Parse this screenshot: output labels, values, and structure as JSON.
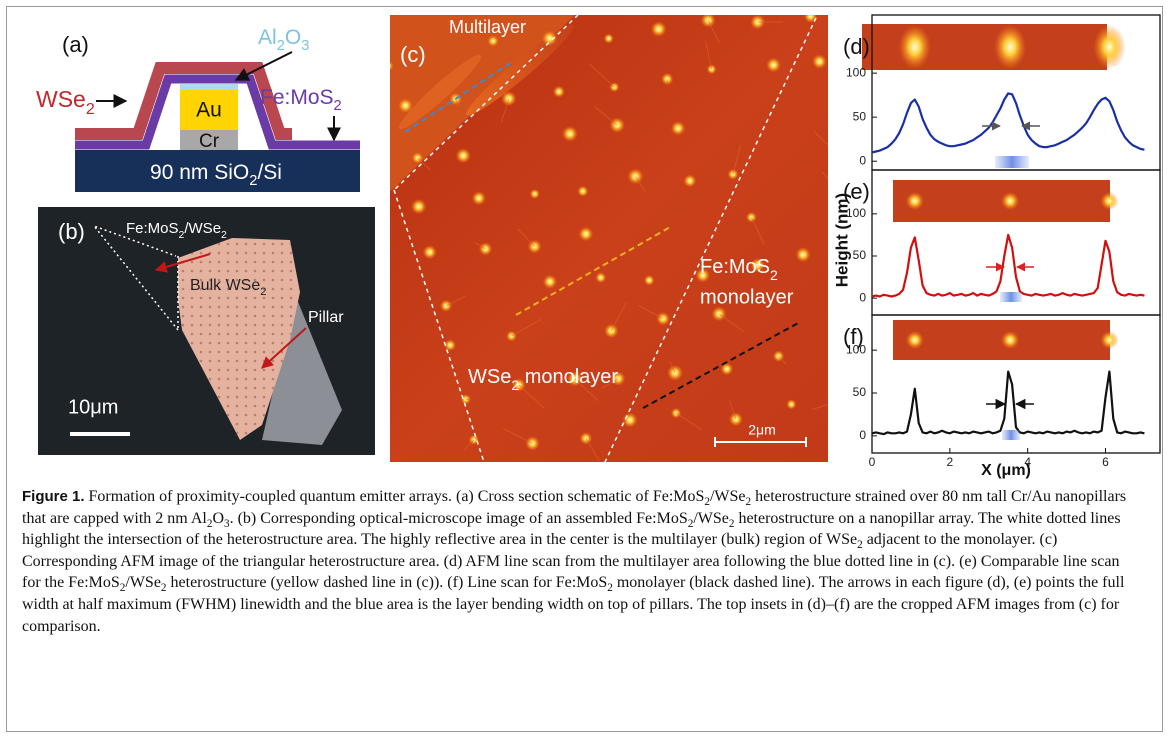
{
  "panel_a": {
    "label": "(a)",
    "wse2": [
      "WSe",
      {
        "sub": "2"
      }
    ],
    "al2o3": [
      "Al",
      {
        "sub": "2"
      },
      "O",
      {
        "sub": "3"
      }
    ],
    "au": "Au",
    "cr": "Cr",
    "fe_mos2": [
      "Fe:MoS",
      {
        "sub": "2"
      }
    ],
    "substrate": [
      "90 nm SiO",
      {
        "sub": "2"
      },
      "/Si"
    ]
  },
  "panel_b": {
    "label": "(b)",
    "heterostructure": [
      "Fe:MoS",
      {
        "sub": "2"
      },
      "/WSe",
      {
        "sub": "2"
      }
    ],
    "bulk": [
      "Bulk WSe",
      {
        "sub": "2"
      }
    ],
    "pillar": "Pillar",
    "scale_bar": "10μm"
  },
  "panel_c": {
    "label": "(c)",
    "multilayer": "Multilayer",
    "wse2_monolayer": [
      "WSe",
      {
        "sub": "2"
      },
      " monolayer"
    ],
    "fe_mos2": [
      "Fe:MoS",
      {
        "sub": "2"
      }
    ],
    "monolayer": "monolayer",
    "scale_bar": "2μm"
  },
  "chart_data": [
    {
      "type": "line",
      "label": "(d)",
      "x": [
        0,
        0.1,
        0.2,
        0.3,
        0.4,
        0.5,
        0.6,
        0.7,
        0.8,
        0.9,
        1,
        1.1,
        1.2,
        1.3,
        1.4,
        1.5,
        1.6,
        1.7,
        1.8,
        1.9,
        2,
        2.1,
        2.2,
        2.3,
        2.4,
        2.5,
        2.6,
        2.7,
        2.8,
        2.9,
        3,
        3.1,
        3.2,
        3.3,
        3.4,
        3.5,
        3.6,
        3.7,
        3.8,
        3.9,
        4,
        4.1,
        4.2,
        4.3,
        4.4,
        4.5,
        4.6,
        4.7,
        4.8,
        4.9,
        5,
        5.1,
        5.2,
        5.3,
        5.4,
        5.5,
        5.6,
        5.7,
        5.8,
        5.9,
        6,
        6.1,
        6.2,
        6.3,
        6.4,
        6.5,
        6.6,
        6.7,
        6.8,
        6.9,
        7
      ],
      "series": [
        {
          "color": "#1a2fa3",
          "values": [
            10,
            11,
            12,
            14,
            16,
            20,
            25,
            32,
            42,
            55,
            66,
            70,
            62,
            48,
            38,
            30,
            25,
            22,
            20,
            18,
            17,
            17,
            18,
            19,
            20,
            22,
            24,
            27,
            30,
            34,
            38,
            44,
            52,
            60,
            70,
            77,
            76,
            66,
            52,
            40,
            30,
            24,
            20,
            17,
            16,
            16,
            17,
            18,
            20,
            22,
            24,
            27,
            30,
            34,
            38,
            43,
            50,
            58,
            65,
            70,
            72,
            68,
            58,
            45,
            35,
            27,
            22,
            18,
            16,
            14,
            13
          ]
        }
      ],
      "xlim": [
        0,
        7.4
      ],
      "ylim": [
        -10,
        166
      ],
      "yticks": [
        0,
        50,
        100
      ]
    },
    {
      "type": "line",
      "label": "(e)",
      "ylabel": "Height (nm)",
      "x": [
        0,
        0.1,
        0.2,
        0.3,
        0.4,
        0.5,
        0.6,
        0.7,
        0.8,
        0.9,
        1,
        1.1,
        1.2,
        1.3,
        1.4,
        1.5,
        1.6,
        1.7,
        1.8,
        1.9,
        2,
        2.1,
        2.2,
        2.3,
        2.4,
        2.5,
        2.6,
        2.7,
        2.8,
        2.9,
        3,
        3.1,
        3.2,
        3.3,
        3.4,
        3.5,
        3.6,
        3.7,
        3.8,
        3.9,
        4,
        4.1,
        4.2,
        4.3,
        4.4,
        4.5,
        4.6,
        4.7,
        4.8,
        4.9,
        5,
        5.1,
        5.2,
        5.3,
        5.4,
        5.5,
        5.6,
        5.7,
        5.8,
        5.9,
        6,
        6.1,
        6.2,
        6.3,
        6.4,
        6.5,
        6.6,
        6.7,
        6.8,
        6.9,
        7
      ],
      "series": [
        {
          "color": "#d01010",
          "values": [
            2,
            3,
            2,
            4,
            3,
            2,
            3,
            5,
            10,
            30,
            60,
            72,
            45,
            15,
            6,
            4,
            3,
            5,
            3,
            4,
            6,
            3,
            4,
            5,
            3,
            4,
            6,
            3,
            5,
            4,
            3,
            5,
            8,
            20,
            50,
            75,
            60,
            25,
            8,
            5,
            4,
            3,
            5,
            4,
            3,
            4,
            5,
            3,
            4,
            6,
            4,
            3,
            5,
            4,
            3,
            4,
            5,
            6,
            12,
            40,
            68,
            55,
            20,
            7,
            4,
            3,
            5,
            4,
            3,
            4,
            3
          ]
        }
      ],
      "xlim": [
        0,
        7.4
      ],
      "ylim": [
        -20,
        152
      ],
      "yticks": [
        0,
        50,
        100
      ]
    },
    {
      "type": "line",
      "label": "(f)",
      "xlabel": "X (μm)",
      "x": [
        0,
        0.1,
        0.2,
        0.3,
        0.4,
        0.5,
        0.6,
        0.7,
        0.8,
        0.9,
        1,
        1.1,
        1.2,
        1.3,
        1.4,
        1.5,
        1.6,
        1.7,
        1.8,
        1.9,
        2,
        2.1,
        2.2,
        2.3,
        2.4,
        2.5,
        2.6,
        2.7,
        2.8,
        2.9,
        3,
        3.1,
        3.2,
        3.3,
        3.4,
        3.5,
        3.6,
        3.7,
        3.8,
        3.9,
        4,
        4.1,
        4.2,
        4.3,
        4.4,
        4.5,
        4.6,
        4.7,
        4.8,
        4.9,
        5,
        5.1,
        5.2,
        5.3,
        5.4,
        5.5,
        5.6,
        5.7,
        5.8,
        5.9,
        6,
        6.1,
        6.2,
        6.3,
        6.4,
        6.5,
        6.6,
        6.7,
        6.8,
        6.9,
        7
      ],
      "series": [
        {
          "color": "#111111",
          "values": [
            3,
            4,
            3,
            2,
            4,
            3,
            3,
            4,
            3,
            5,
            25,
            55,
            15,
            4,
            3,
            5,
            3,
            4,
            6,
            4,
            3,
            5,
            4,
            3,
            4,
            3,
            5,
            4,
            3,
            4,
            5,
            3,
            4,
            6,
            20,
            75,
            60,
            10,
            4,
            3,
            5,
            4,
            3,
            4,
            3,
            5,
            4,
            3,
            4,
            3,
            5,
            4,
            6,
            4,
            3,
            4,
            3,
            5,
            4,
            6,
            45,
            75,
            20,
            4,
            3,
            5,
            4,
            3,
            3,
            4,
            3
          ]
        }
      ],
      "xlim": [
        0,
        7.4
      ],
      "ylim": [
        -20,
        141
      ],
      "yticks": [
        0,
        50,
        100
      ],
      "xticks": [
        0,
        2,
        4,
        6
      ]
    }
  ],
  "caption": {
    "label": "Figure 1.",
    "text": [
      " Formation of proximity-coupled quantum emitter arrays. (a) Cross section schematic of Fe:MoS",
      {
        "sub": "2"
      },
      "/WSe",
      {
        "sub": "2"
      },
      " heterostructure strained over 80 nm tall Cr/Au nanopillars that are capped with 2 nm Al",
      {
        "sub": "2"
      },
      "O",
      {
        "sub": "3"
      },
      ". (b) Corresponding optical-microscope image of an assembled Fe:MoS",
      {
        "sub": "2"
      },
      "/WSe",
      {
        "sub": "2"
      },
      " heterostructure on a nanopillar array. The white dotted lines highlight the intersection of the heterostructure area. The highly reflective area in the center is the multilayer (bulk) region of WSe",
      {
        "sub": "2"
      },
      " adjacent to the monolayer. (c) Corresponding AFM image of the triangular heterostructure area. (d) AFM line scan from the multilayer area following the blue dotted line in (c). (e) Comparable line scan for the Fe:MoS",
      {
        "sub": "2"
      },
      "/WSe",
      {
        "sub": "2"
      },
      " heterostructure (yellow dashed line in (c)). (f) Line scan for Fe:MoS",
      {
        "sub": "2"
      },
      " monolayer (black dashed line). The arrows in each figure (d), (e) points the full width at half maximum (FWHM) linewidth and the blue area is the layer bending width on top of pillars. The top insets in (d)–(f) are the cropped AFM images from (c) for comparison."
    ]
  }
}
